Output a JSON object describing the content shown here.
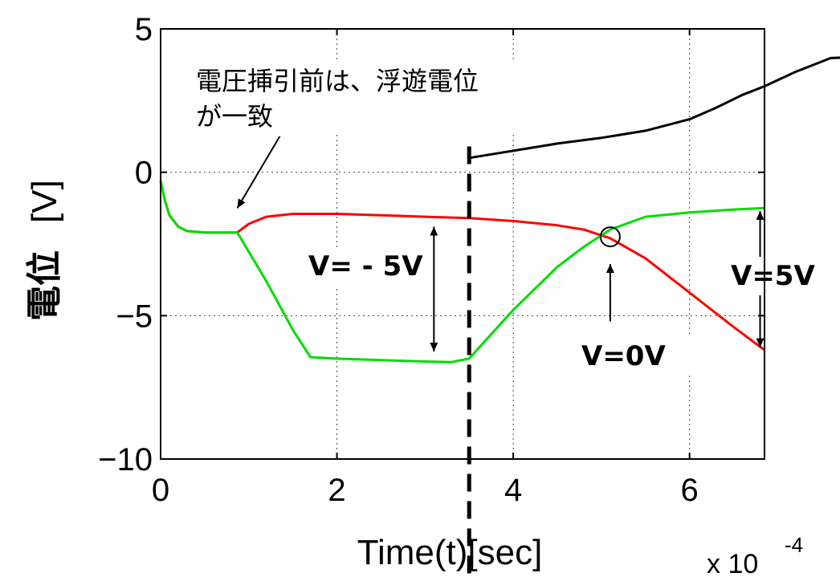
{
  "chart_data": {
    "type": "line",
    "xlabel": "Time(t)[sec]",
    "ylabel": "電位 [V]",
    "ylabel_parts": [
      "電位",
      "[V]"
    ],
    "x_multiplier_base": "x 10",
    "x_multiplier_exp": "-4",
    "xlim": [
      0,
      6.85
    ],
    "ylim": [
      -10,
      5
    ],
    "xticks": [
      0,
      2,
      4,
      6
    ],
    "yticks": [
      5,
      0,
      -5,
      -10
    ],
    "xtick_labels": [
      "0",
      "2",
      "4",
      "6"
    ],
    "ytick_labels": [
      "5",
      "0",
      "−5",
      "−10"
    ],
    "grid": true,
    "series": [
      {
        "color": "#ff0000",
        "x": [
          0.0,
          0.05,
          0.1,
          0.2,
          0.3,
          0.5,
          0.87,
          1.0,
          1.2,
          1.5,
          2.0,
          2.5,
          3.0,
          3.5,
          4.0,
          4.5,
          4.8,
          5.1,
          5.5,
          6.0,
          6.5,
          6.85
        ],
        "y": [
          -0.3,
          -1.0,
          -1.5,
          -1.9,
          -2.05,
          -2.1,
          -2.1,
          -1.8,
          -1.55,
          -1.45,
          -1.45,
          -1.5,
          -1.55,
          -1.6,
          -1.7,
          -1.85,
          -2.0,
          -2.3,
          -3.0,
          -4.2,
          -5.4,
          -6.2
        ]
      },
      {
        "color": "#00dd00",
        "x": [
          0.0,
          0.05,
          0.1,
          0.2,
          0.3,
          0.5,
          0.87,
          1.2,
          1.5,
          1.7,
          2.0,
          2.5,
          3.0,
          3.3,
          3.5,
          4.0,
          4.5,
          4.8,
          5.1,
          5.5,
          6.0,
          6.5,
          6.85
        ],
        "y": [
          -0.3,
          -1.0,
          -1.5,
          -1.9,
          -2.05,
          -2.1,
          -2.1,
          -3.8,
          -5.5,
          -6.45,
          -6.5,
          -6.55,
          -6.6,
          -6.62,
          -6.5,
          -4.8,
          -3.3,
          -2.6,
          -2.0,
          -1.55,
          -1.4,
          -1.3,
          -1.25
        ]
      },
      {
        "color": "#000000",
        "x": [
          3.5,
          4.0,
          4.5,
          5.0,
          5.5,
          6.0,
          6.3,
          6.6,
          6.85
        ],
        "y": [
          0.5,
          0.75,
          1.0,
          1.2,
          1.45,
          1.85,
          2.25,
          2.7,
          3.0
        ]
      }
    ],
    "black_curve_extension": {
      "x": [
        6.85,
        7.2,
        7.6,
        7.9
      ],
      "y": [
        3.0,
        3.5,
        3.98,
        4.02
      ]
    },
    "divider_x": 3.5,
    "annotations": {
      "floating_line1": "電圧挿引前は、浮遊電位",
      "floating_line2": "が一致",
      "v_minus5": "V= - 5V",
      "v_zero": "V=0V",
      "v_plus5": "V=5V"
    },
    "annotation_points": {
      "floating_arrow_tip": [
        0.87,
        -1.25
      ],
      "floating_arrow_tail": [
        1.38,
        1.4
      ],
      "vminus5_arrow": {
        "x": 3.1,
        "y_top": -1.9,
        "y_bottom": -6.25
      },
      "crossing_circle": [
        5.1,
        -2.25
      ],
      "vzero_arrow": {
        "x": 5.1,
        "y_top": -3.2,
        "y_bottom": -5.2
      },
      "vplus5_arrow": {
        "x": 6.8,
        "y_top": -1.35,
        "y_bottom": -6.1
      }
    }
  }
}
